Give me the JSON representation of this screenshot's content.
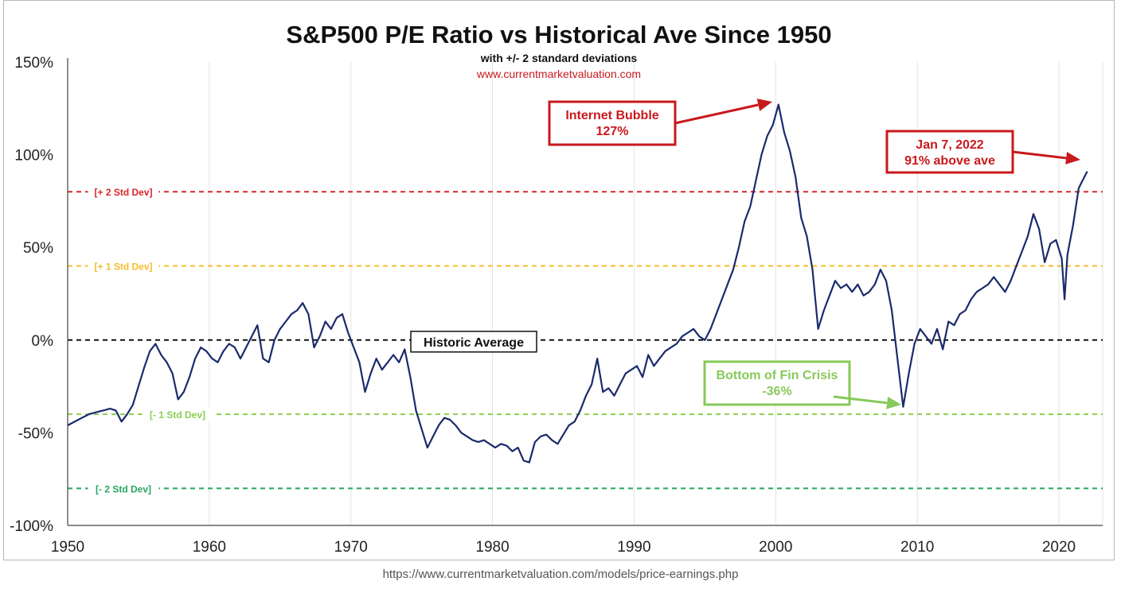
{
  "source_url": "https://www.currentmarketvaluation.com/models/price-earnings.php",
  "colors": {
    "series": "#1b2a6b",
    "plus2": "#d9262b",
    "plus1": "#f5bd2c",
    "minus1": "#8ccd52",
    "minus2": "#25a55f",
    "average": "#111111",
    "annotation_red": "#c8191d",
    "annotation_green": "#87c95a"
  },
  "chart_data": {
    "type": "line",
    "title": "S&P500 P/E Ratio vs Historical Ave Since 1950",
    "subtitle": "with +/- 2 standard deviations",
    "website": "www.currentmarketvaluation.com",
    "xlabel": "",
    "ylabel": "",
    "xlim": [
      1950,
      2023
    ],
    "ylim": [
      -100,
      150
    ],
    "x_ticks": [
      1950,
      1960,
      1970,
      1980,
      1990,
      2000,
      2010,
      2020
    ],
    "y_ticks": [
      {
        "value": 150,
        "label": "150%"
      },
      {
        "value": 100,
        "label": "100%"
      },
      {
        "value": 50,
        "label": "50%"
      },
      {
        "value": 0,
        "label": "0%"
      },
      {
        "value": -50,
        "label": "-50%"
      },
      {
        "value": -100,
        "label": "-100%"
      }
    ],
    "grid": "vertical",
    "bands": [
      {
        "name": "plus2",
        "value": 80,
        "label": "+ 2 Std Dev"
      },
      {
        "name": "plus1",
        "value": 40,
        "label": "+ 1 Std Dev"
      },
      {
        "name": "average",
        "value": 0,
        "label": "Historic Average"
      },
      {
        "name": "minus1",
        "value": -40,
        "label": "- 1 Std Dev"
      },
      {
        "name": "minus2",
        "value": -80,
        "label": "- 2 Std Dev"
      }
    ],
    "series": [
      {
        "name": "P/E ratio deviation from historical average (%)",
        "points": [
          [
            1950.0,
            -46
          ],
          [
            1950.5,
            -44
          ],
          [
            1951.0,
            -42
          ],
          [
            1951.5,
            -40
          ],
          [
            1952.0,
            -39
          ],
          [
            1952.5,
            -38
          ],
          [
            1953.0,
            -37
          ],
          [
            1953.4,
            -38
          ],
          [
            1953.8,
            -44
          ],
          [
            1954.2,
            -40
          ],
          [
            1954.6,
            -35
          ],
          [
            1955.0,
            -25
          ],
          [
            1955.4,
            -15
          ],
          [
            1955.8,
            -6
          ],
          [
            1956.2,
            -2
          ],
          [
            1956.6,
            -8
          ],
          [
            1957.0,
            -12
          ],
          [
            1957.4,
            -18
          ],
          [
            1957.8,
            -32
          ],
          [
            1958.2,
            -28
          ],
          [
            1958.6,
            -20
          ],
          [
            1959.0,
            -10
          ],
          [
            1959.4,
            -4
          ],
          [
            1959.8,
            -6
          ],
          [
            1960.2,
            -10
          ],
          [
            1960.6,
            -12
          ],
          [
            1961.0,
            -6
          ],
          [
            1961.4,
            -2
          ],
          [
            1961.8,
            -4
          ],
          [
            1962.2,
            -10
          ],
          [
            1962.6,
            -4
          ],
          [
            1963.0,
            2
          ],
          [
            1963.4,
            8
          ],
          [
            1963.8,
            -10
          ],
          [
            1964.2,
            -12
          ],
          [
            1964.6,
            0
          ],
          [
            1965.0,
            6
          ],
          [
            1965.4,
            10
          ],
          [
            1965.8,
            14
          ],
          [
            1966.2,
            16
          ],
          [
            1966.6,
            20
          ],
          [
            1967.0,
            14
          ],
          [
            1967.4,
            -4
          ],
          [
            1967.8,
            2
          ],
          [
            1968.2,
            10
          ],
          [
            1968.6,
            6
          ],
          [
            1969.0,
            12
          ],
          [
            1969.4,
            14
          ],
          [
            1969.8,
            4
          ],
          [
            1970.2,
            -4
          ],
          [
            1970.6,
            -12
          ],
          [
            1971.0,
            -28
          ],
          [
            1971.4,
            -18
          ],
          [
            1971.8,
            -10
          ],
          [
            1972.2,
            -16
          ],
          [
            1972.6,
            -12
          ],
          [
            1973.0,
            -8
          ],
          [
            1973.4,
            -12
          ],
          [
            1973.8,
            -5
          ],
          [
            1974.2,
            -20
          ],
          [
            1974.6,
            -38
          ],
          [
            1975.0,
            -48
          ],
          [
            1975.4,
            -58
          ],
          [
            1975.8,
            -52
          ],
          [
            1976.2,
            -46
          ],
          [
            1976.6,
            -42
          ],
          [
            1977.0,
            -43
          ],
          [
            1977.4,
            -46
          ],
          [
            1977.8,
            -50
          ],
          [
            1978.2,
            -52
          ],
          [
            1978.6,
            -54
          ],
          [
            1979.0,
            -55
          ],
          [
            1979.4,
            -54
          ],
          [
            1979.8,
            -56
          ],
          [
            1980.2,
            -58
          ],
          [
            1980.6,
            -56
          ],
          [
            1981.0,
            -57
          ],
          [
            1981.4,
            -60
          ],
          [
            1981.8,
            -58
          ],
          [
            1982.2,
            -65
          ],
          [
            1982.6,
            -66
          ],
          [
            1983.0,
            -55
          ],
          [
            1983.4,
            -52
          ],
          [
            1983.8,
            -51
          ],
          [
            1984.2,
            -54
          ],
          [
            1984.6,
            -56
          ],
          [
            1985.0,
            -51
          ],
          [
            1985.4,
            -46
          ],
          [
            1985.8,
            -44
          ],
          [
            1986.2,
            -38
          ],
          [
            1986.6,
            -30
          ],
          [
            1987.0,
            -24
          ],
          [
            1987.4,
            -10
          ],
          [
            1987.8,
            -28
          ],
          [
            1988.2,
            -26
          ],
          [
            1988.6,
            -30
          ],
          [
            1989.0,
            -24
          ],
          [
            1989.4,
            -18
          ],
          [
            1989.8,
            -16
          ],
          [
            1990.2,
            -14
          ],
          [
            1990.6,
            -20
          ],
          [
            1991.0,
            -8
          ],
          [
            1991.4,
            -14
          ],
          [
            1991.8,
            -10
          ],
          [
            1992.2,
            -6
          ],
          [
            1992.6,
            -4
          ],
          [
            1993.0,
            -2
          ],
          [
            1993.4,
            2
          ],
          [
            1993.8,
            4
          ],
          [
            1994.2,
            6
          ],
          [
            1994.6,
            2
          ],
          [
            1995.0,
            0
          ],
          [
            1995.4,
            6
          ],
          [
            1995.8,
            14
          ],
          [
            1996.2,
            22
          ],
          [
            1996.6,
            30
          ],
          [
            1997.0,
            38
          ],
          [
            1997.4,
            50
          ],
          [
            1997.8,
            64
          ],
          [
            1998.2,
            72
          ],
          [
            1998.6,
            86
          ],
          [
            1999.0,
            100
          ],
          [
            1999.4,
            110
          ],
          [
            1999.8,
            116
          ],
          [
            2000.2,
            127
          ],
          [
            2000.6,
            112
          ],
          [
            2001.0,
            102
          ],
          [
            2001.4,
            88
          ],
          [
            2001.8,
            66
          ],
          [
            2002.2,
            56
          ],
          [
            2002.6,
            38
          ],
          [
            2003.0,
            6
          ],
          [
            2003.4,
            16
          ],
          [
            2003.8,
            24
          ],
          [
            2004.2,
            32
          ],
          [
            2004.6,
            28
          ],
          [
            2005.0,
            30
          ],
          [
            2005.4,
            26
          ],
          [
            2005.8,
            30
          ],
          [
            2006.2,
            24
          ],
          [
            2006.6,
            26
          ],
          [
            2007.0,
            30
          ],
          [
            2007.4,
            38
          ],
          [
            2007.8,
            32
          ],
          [
            2008.2,
            16
          ],
          [
            2008.6,
            -10
          ],
          [
            2009.0,
            -36
          ],
          [
            2009.4,
            -18
          ],
          [
            2009.8,
            -2
          ],
          [
            2010.2,
            6
          ],
          [
            2010.6,
            2
          ],
          [
            2011.0,
            -2
          ],
          [
            2011.4,
            6
          ],
          [
            2011.8,
            -5
          ],
          [
            2012.2,
            10
          ],
          [
            2012.6,
            8
          ],
          [
            2013.0,
            14
          ],
          [
            2013.4,
            16
          ],
          [
            2013.8,
            22
          ],
          [
            2014.2,
            26
          ],
          [
            2014.6,
            28
          ],
          [
            2015.0,
            30
          ],
          [
            2015.4,
            34
          ],
          [
            2015.8,
            30
          ],
          [
            2016.2,
            26
          ],
          [
            2016.6,
            32
          ],
          [
            2017.0,
            40
          ],
          [
            2017.4,
            48
          ],
          [
            2017.8,
            56
          ],
          [
            2018.2,
            68
          ],
          [
            2018.6,
            60
          ],
          [
            2019.0,
            42
          ],
          [
            2019.4,
            52
          ],
          [
            2019.8,
            54
          ],
          [
            2020.2,
            44
          ],
          [
            2020.4,
            22
          ],
          [
            2020.6,
            46
          ],
          [
            2021.0,
            62
          ],
          [
            2021.4,
            82
          ],
          [
            2021.8,
            88
          ],
          [
            2022.0,
            91
          ]
        ]
      }
    ],
    "annotations": [
      {
        "name": "internet-bubble",
        "lines": [
          "Internet Bubble",
          "127%"
        ],
        "color": "red",
        "x": 2000.0,
        "y": 127
      },
      {
        "name": "jan-2022",
        "lines": [
          "Jan 7, 2022",
          "91% above ave"
        ],
        "color": "red",
        "x": 2022.0,
        "y": 98
      },
      {
        "name": "fin-crisis",
        "lines": [
          "Bottom of Fin Crisis",
          "-36%"
        ],
        "color": "green",
        "x": 2009.0,
        "y": -36
      }
    ]
  }
}
